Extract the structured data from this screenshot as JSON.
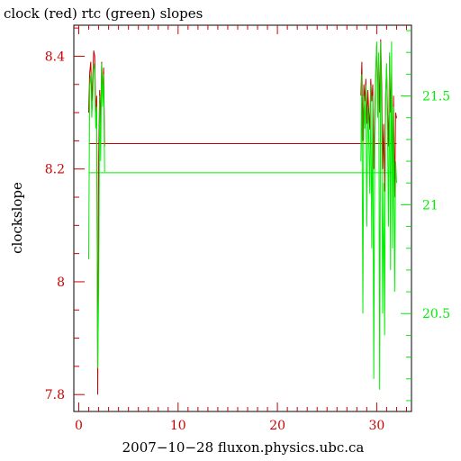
{
  "chart_data": {
    "type": "line",
    "title": "clock (red) rtc (green) slopes",
    "xlabel": "2007−10−28 fluxon.physics.ubc.ca",
    "ylabel": "clockslope",
    "ylabel_right": "",
    "xlim": [
      -0.5,
      33.5
    ],
    "ylim": [
      7.77,
      8.455
    ],
    "ylim_right": [
      20.05,
      21.825
    ],
    "x_ticks": [
      0,
      10,
      20,
      30
    ],
    "y_ticks": [
      7.8,
      8,
      8.2,
      8.4
    ],
    "y_ticks_right": [
      20.5,
      21,
      21.5
    ],
    "y_tick_labels": [
      "7.8",
      "8",
      "8.2",
      "8.4"
    ],
    "y_tick_labels_right": [
      "20.5",
      "21",
      "21.5"
    ],
    "x_tick_labels": [
      "0",
      "10",
      "20",
      "30"
    ],
    "colors": {
      "clock": "#cc0000",
      "rtc": "#00ee00",
      "axis_left": "#cc0000",
      "axis_right": "#00ee00",
      "frame": "#000000"
    },
    "series": [
      {
        "name": "clock",
        "axis": "left",
        "color": "#cc0000",
        "x": [
          1.0,
          1.1,
          1.2,
          1.3,
          1.4,
          1.5,
          1.6,
          1.7,
          1.8,
          1.9,
          2.0,
          2.1,
          2.2,
          2.3,
          2.4,
          2.5,
          2.6,
          16.5,
          28.4,
          28.5,
          28.6,
          28.7,
          28.8,
          28.9,
          29.0,
          29.1,
          29.2,
          29.3,
          29.4,
          29.5,
          29.6,
          29.7,
          29.8,
          29.9,
          30.0,
          30.1,
          30.2,
          30.3,
          30.4,
          30.5,
          30.6,
          30.7,
          30.8,
          30.9,
          31.0,
          31.1,
          31.2,
          31.3,
          31.4,
          31.5,
          31.6,
          31.7,
          31.8,
          31.9,
          32.0
        ],
        "y": [
          8.3,
          8.37,
          8.39,
          8.32,
          8.36,
          8.41,
          8.4,
          8.3,
          8.33,
          7.8,
          8.22,
          8.34,
          8.28,
          8.39,
          8.33,
          8.38,
          8.24,
          8.245,
          8.33,
          8.39,
          8.25,
          8.35,
          8.32,
          8.36,
          8.28,
          8.34,
          8.3,
          8.27,
          8.36,
          8.32,
          8.35,
          8.2,
          8.3,
          8.37,
          8.42,
          8.33,
          8.39,
          8.3,
          8.43,
          8.35,
          8.2,
          8.28,
          8.16,
          8.33,
          8.38,
          8.3,
          8.24,
          8.4,
          8.3,
          8.37,
          8.18,
          8.33,
          8.15,
          8.3,
          8.29
        ]
      },
      {
        "name": "rtc",
        "axis": "right",
        "color": "#00ee00",
        "x": [
          1.0,
          1.1,
          1.2,
          1.3,
          1.4,
          1.5,
          1.6,
          1.7,
          1.8,
          1.9,
          2.0,
          2.1,
          2.2,
          2.3,
          2.4,
          2.5,
          2.6,
          16.5,
          28.4,
          28.5,
          28.6,
          28.7,
          28.8,
          28.9,
          29.0,
          29.1,
          29.2,
          29.3,
          29.4,
          29.5,
          29.6,
          29.7,
          29.8,
          29.9,
          30.0,
          30.1,
          30.2,
          30.3,
          30.4,
          30.5,
          30.6,
          30.7,
          30.8,
          30.9,
          31.0,
          31.1,
          31.2,
          31.3,
          31.4,
          31.5,
          31.6,
          31.7,
          31.8,
          31.9,
          32.0
        ],
        "y": [
          20.75,
          21.55,
          21.6,
          21.4,
          21.5,
          21.65,
          21.62,
          21.35,
          21.45,
          20.25,
          20.6,
          21.5,
          21.2,
          21.65,
          21.45,
          21.6,
          21.15,
          21.15,
          21.2,
          21.6,
          20.5,
          21.5,
          21.35,
          21.55,
          20.9,
          21.45,
          21.3,
          21.05,
          21.55,
          20.8,
          21.5,
          20.2,
          21.3,
          21.6,
          21.75,
          21.4,
          21.7,
          20.15,
          21.75,
          21.4,
          20.5,
          21.1,
          20.4,
          21.5,
          21.65,
          21.3,
          20.9,
          21.7,
          20.7,
          21.75,
          20.8,
          21.45,
          20.6,
          21.2,
          21.1
        ]
      }
    ],
    "flat_lines": [
      {
        "series": "clock",
        "axis": "left",
        "x": [
          1.0,
          32.0
        ],
        "y": [
          8.245,
          8.245
        ]
      },
      {
        "series": "rtc",
        "axis": "right",
        "x": [
          1.0,
          32.0
        ],
        "y": [
          21.147,
          21.147
        ]
      }
    ],
    "grid": false,
    "legend": "none"
  }
}
